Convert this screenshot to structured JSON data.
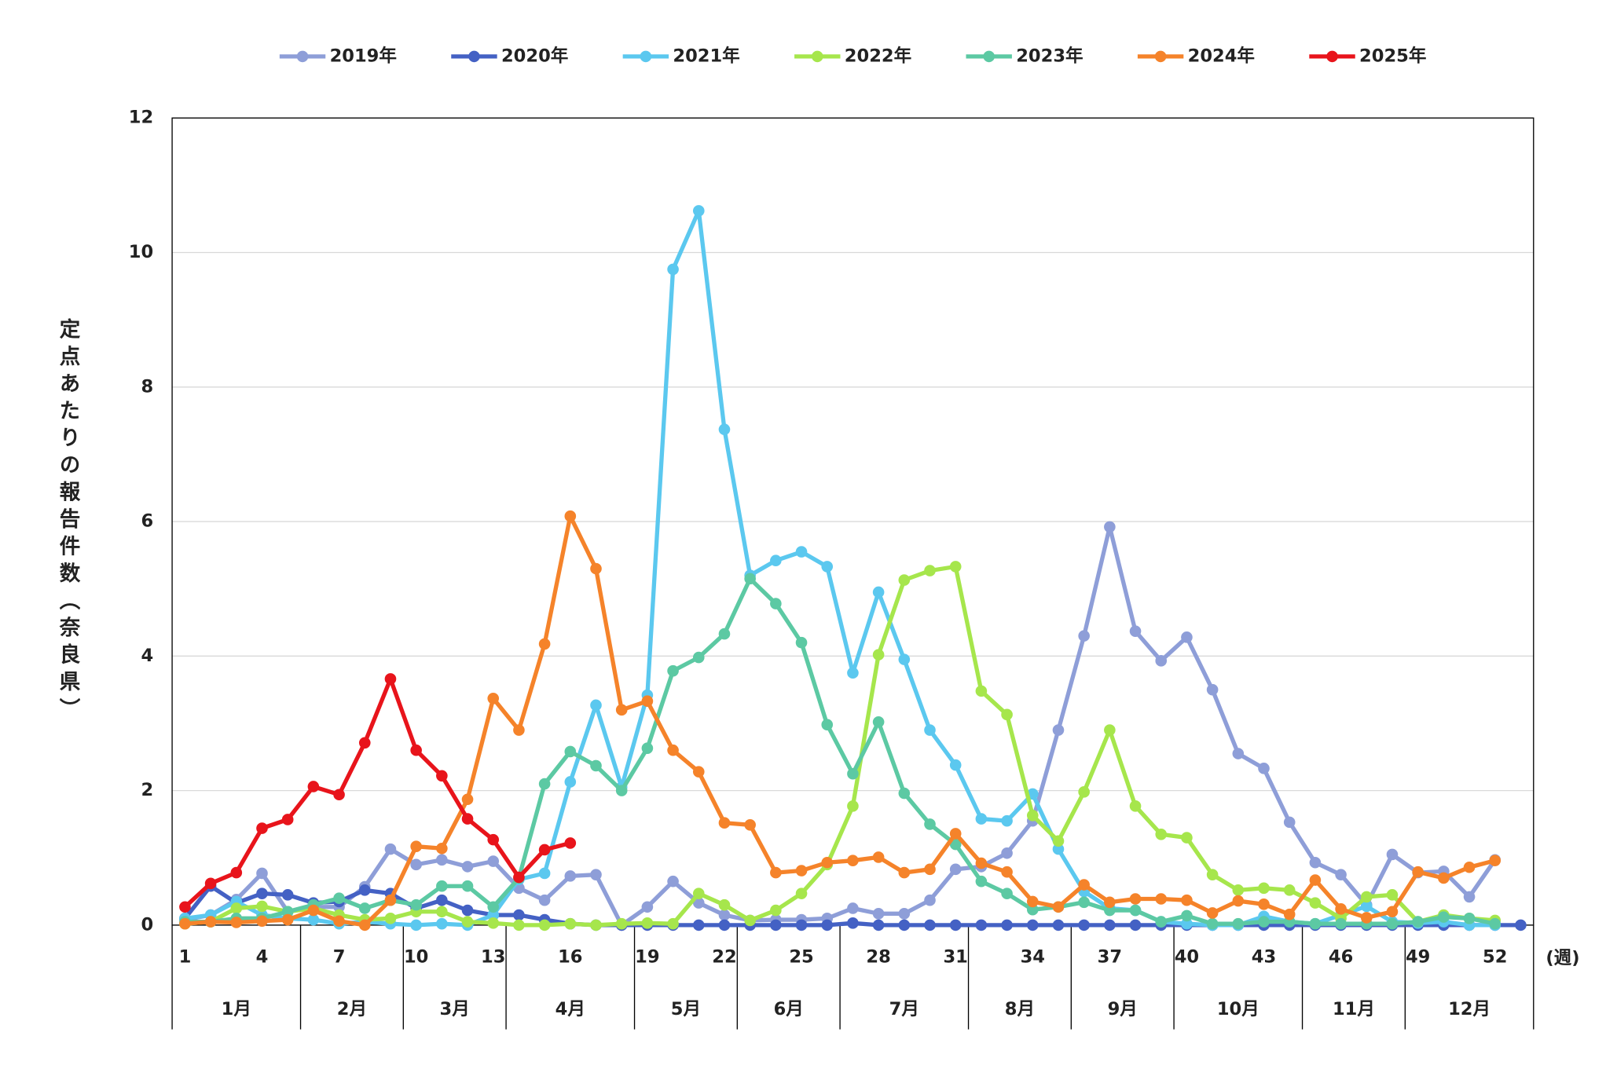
{
  "chart_data": {
    "type": "line",
    "y_label": "定点あたりの報告件数（奈良県）",
    "x_label": "(週)",
    "categories": [
      1,
      null,
      null,
      4,
      null,
      null,
      7,
      null,
      null,
      10,
      null,
      null,
      13,
      null,
      null,
      16,
      null,
      null,
      19,
      null,
      null,
      22,
      null,
      null,
      25,
      null,
      null,
      28,
      null,
      null,
      31,
      null,
      null,
      34,
      null,
      null,
      37,
      null,
      null,
      40,
      null,
      null,
      43,
      null,
      null,
      46,
      null,
      null,
      49,
      null,
      null,
      52,
      null
    ],
    "months": [
      "1月",
      "2月",
      "3月",
      "4月",
      "5月",
      "6月",
      "7月",
      "8月",
      "9月",
      "10月",
      "11月",
      "12月"
    ],
    "ylim": [
      0,
      12
    ],
    "yticks": [
      0,
      2,
      4,
      6,
      8,
      10,
      12
    ],
    "grid": true,
    "series": [
      {
        "name": "2019年",
        "color": "#8e9ed8",
        "values": [
          0.08,
          0.15,
          0.38,
          0.77,
          0.2,
          0.27,
          0.27,
          0.57,
          1.13,
          0.9,
          0.97,
          0.87,
          0.95,
          0.55,
          0.37,
          0.73,
          0.75,
          0,
          0.27,
          0.65,
          0.33,
          0.15,
          0.07,
          0.08,
          0.08,
          0.1,
          0.25,
          0.17,
          0.17,
          0.37,
          0.83,
          0.87,
          1.07,
          1.55,
          2.9,
          4.3,
          5.92,
          4.37,
          3.93,
          4.28,
          3.5,
          2.55,
          2.33,
          1.53,
          0.93,
          0.75,
          0.3,
          1.05,
          0.78,
          0.8,
          0.42,
          0.97,
          null
        ]
      },
      {
        "name": "2020年",
        "color": "#4461c4",
        "values": [
          0.1,
          0.58,
          0.33,
          0.47,
          0.45,
          0.33,
          0.35,
          0.52,
          0.47,
          0.25,
          0.37,
          0.22,
          0.15,
          0.15,
          0.08,
          0.02,
          0,
          0,
          0,
          0,
          0,
          0,
          0,
          0,
          0,
          0,
          0.03,
          0,
          0,
          0,
          0,
          0,
          0,
          0,
          0,
          0,
          0,
          0,
          0,
          0,
          0,
          0,
          0,
          0,
          0,
          0,
          0,
          0,
          0,
          0,
          0,
          0,
          0
        ]
      },
      {
        "name": "2021年",
        "color": "#5bc8ef",
        "values": [
          0.1,
          0.15,
          0.35,
          0.15,
          0.1,
          0.08,
          0.02,
          0.05,
          0.02,
          0,
          0.02,
          0,
          0.15,
          0.68,
          0.77,
          2.13,
          3.27,
          2.05,
          3.42,
          9.75,
          10.62,
          7.37,
          5.2,
          5.42,
          5.55,
          5.33,
          3.75,
          4.95,
          3.95,
          2.9,
          2.38,
          1.58,
          1.55,
          1.95,
          1.13,
          0.5,
          0.25,
          0.22,
          0.05,
          0.02,
          0,
          0,
          0.13,
          0.05,
          0.02,
          0.15,
          0.28,
          0.05,
          0.03,
          0.05,
          0,
          0,
          null
        ]
      },
      {
        "name": "2022年",
        "color": "#a6e64c",
        "values": [
          0.02,
          0.05,
          0.25,
          0.28,
          0.2,
          0.25,
          0.15,
          0.08,
          0.1,
          0.2,
          0.2,
          0.05,
          0.03,
          0,
          0,
          0.02,
          0,
          0.02,
          0.03,
          0.02,
          0.47,
          0.3,
          0.07,
          0.22,
          0.47,
          0.9,
          1.77,
          4.02,
          5.13,
          5.27,
          5.33,
          3.48,
          3.13,
          1.63,
          1.25,
          1.98,
          2.9,
          1.77,
          1.35,
          1.3,
          0.75,
          0.52,
          0.55,
          0.52,
          0.33,
          0.1,
          0.42,
          0.45,
          0.05,
          0.15,
          0.1,
          0.07,
          null
        ]
      },
      {
        "name": "2023年",
        "color": "#5cc9a3",
        "values": [
          0.05,
          0.05,
          0.1,
          0.1,
          0.2,
          0.3,
          0.4,
          0.25,
          0.37,
          0.3,
          0.58,
          0.58,
          0.27,
          0.7,
          2.1,
          2.58,
          2.37,
          2,
          2.63,
          3.78,
          3.98,
          4.33,
          5.15,
          4.78,
          4.2,
          2.98,
          2.25,
          3.02,
          1.96,
          1.5,
          1.2,
          0.65,
          0.47,
          0.23,
          0.27,
          0.34,
          0.22,
          0.22,
          0.05,
          0.14,
          0.02,
          0.02,
          0.05,
          0.05,
          0.02,
          0.02,
          0.02,
          0.02,
          0.05,
          0.12,
          0.1,
          0.02,
          null
        ]
      },
      {
        "name": "2024年",
        "color": "#f5832a",
        "values": [
          0.02,
          0.05,
          0.04,
          0.06,
          0.08,
          0.22,
          0.06,
          0,
          0.37,
          1.17,
          1.14,
          1.87,
          3.37,
          2.9,
          4.18,
          6.08,
          5.3,
          3.2,
          3.33,
          2.6,
          2.28,
          1.52,
          1.49,
          0.78,
          0.81,
          0.93,
          0.96,
          1.01,
          0.78,
          0.83,
          1.36,
          0.92,
          0.79,
          0.35,
          0.27,
          0.6,
          0.34,
          0.39,
          0.39,
          0.37,
          0.18,
          0.36,
          0.31,
          0.16,
          0.67,
          0.24,
          0.11,
          0.2,
          0.79,
          0.7,
          0.86,
          0.96,
          null
        ]
      },
      {
        "name": "2025年",
        "color": "#e8141b",
        "values": [
          0.27,
          0.62,
          0.78,
          1.44,
          1.57,
          2.06,
          1.94,
          2.71,
          3.66,
          2.6,
          2.22,
          1.58,
          1.27,
          0.71,
          1.12,
          1.22,
          null,
          null,
          null,
          null,
          null,
          null,
          null,
          null,
          null,
          null,
          null,
          null,
          null,
          null,
          null,
          null,
          null,
          null,
          null,
          null,
          null,
          null,
          null,
          null,
          null,
          null,
          null,
          null,
          null,
          null,
          null,
          null,
          null,
          null,
          null,
          null,
          null
        ]
      }
    ]
  }
}
